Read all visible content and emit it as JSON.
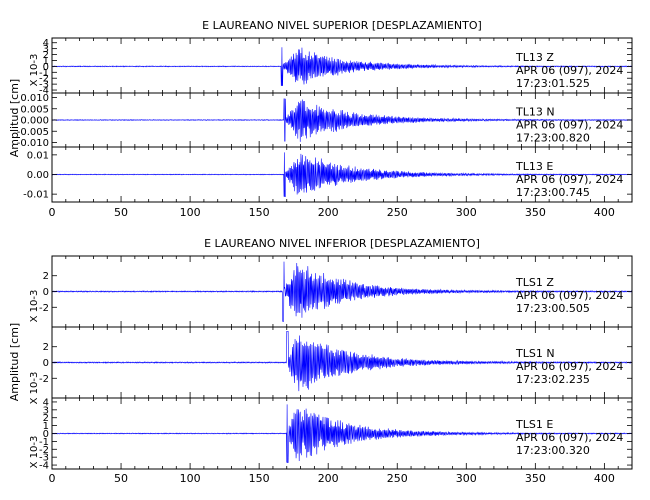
{
  "chart_data": [
    {
      "type": "line",
      "title": "E LAUREANO NIVEL SUPERIOR [DESPLAZAMIENTO]",
      "ylabel": "Amplitud [cm]",
      "xlim": [
        0,
        420
      ],
      "x_ticks": [
        0,
        50,
        100,
        150,
        200,
        250,
        300,
        350,
        400
      ],
      "traces": [
        {
          "scale_label": "X 10-3",
          "ylim": [
            -4.5,
            4.8
          ],
          "y_ticks": [
            -4,
            -3,
            -2,
            -1,
            0,
            1,
            2,
            3,
            4
          ],
          "info": [
            "TL13   Z",
            "APR 06 (097), 2024",
            "17:23:01.525"
          ],
          "onset": 166,
          "peak_time": 178,
          "peak_amplitude": 3.6,
          "duration": 150,
          "noise": 0.08
        },
        {
          "scale_label": "",
          "ylim": [
            -0.012,
            0.012
          ],
          "y_ticks": [
            -0.01,
            -0.005,
            0.0,
            0.005,
            0.01
          ],
          "y_tick_labels": [
            "-0.010",
            "-0.005",
            "0.000",
            "0.005",
            "0.010"
          ],
          "info": [
            "TL13   N",
            "APR 06 (097), 2024",
            "17:23:00.820"
          ],
          "onset": 168,
          "peak_time": 180,
          "peak_amplitude": 0.0105,
          "duration": 165,
          "noise": 0.0002
        },
        {
          "scale_label": "",
          "ylim": [
            -0.014,
            0.014
          ],
          "y_ticks": [
            -0.01,
            0.0,
            0.01
          ],
          "y_tick_labels": [
            "-0.01",
            "0.00",
            "0.01"
          ],
          "info": [
            "TL13   E",
            "APR 06 (097), 2024",
            "17:23:00.745"
          ],
          "onset": 168,
          "peak_time": 179,
          "peak_amplitude": 0.0125,
          "duration": 165,
          "noise": 0.0002
        }
      ]
    },
    {
      "type": "line",
      "title": "E LAUREANO NIVEL INFERIOR [DESPLAZAMIENTO]",
      "ylabel": "Amplitud [cm]",
      "xlim": [
        0,
        420
      ],
      "x_ticks": [
        0,
        50,
        100,
        150,
        200,
        250,
        300,
        350,
        400
      ],
      "traces": [
        {
          "scale_label": "X 10-3",
          "ylim": [
            -4.5,
            4.5
          ],
          "y_ticks": [
            -2,
            0,
            2
          ],
          "info": [
            "TLS1   Z",
            "APR 06 (097), 2024",
            "17:23:00.505"
          ],
          "onset": 167,
          "peak_time": 178,
          "peak_amplitude": 4.2,
          "duration": 150,
          "noise": 0.08
        },
        {
          "scale_label": "X 10-3",
          "ylim": [
            -4.5,
            4.5
          ],
          "y_ticks": [
            -2,
            0,
            2
          ],
          "info": [
            "TLS1   N",
            "APR 06 (097), 2024",
            "17:23:02.235"
          ],
          "onset": 170,
          "peak_time": 178,
          "peak_amplitude": 4.4,
          "duration": 160,
          "noise": 0.08
        },
        {
          "scale_label": "X 10-3",
          "ylim": [
            -4.5,
            4.5
          ],
          "y_ticks": [
            -4,
            -3,
            -2,
            -1,
            0,
            1,
            2,
            3,
            4
          ],
          "info": [
            "TLS1   E",
            "APR 06 (097), 2024",
            "17:23:00.320"
          ],
          "onset": 170,
          "peak_time": 177,
          "peak_amplitude": 4.1,
          "duration": 160,
          "noise": 0.06
        }
      ]
    }
  ],
  "colors": {
    "trace": "#0000ff",
    "axis": "#000000",
    "background": "#ffffff"
  }
}
